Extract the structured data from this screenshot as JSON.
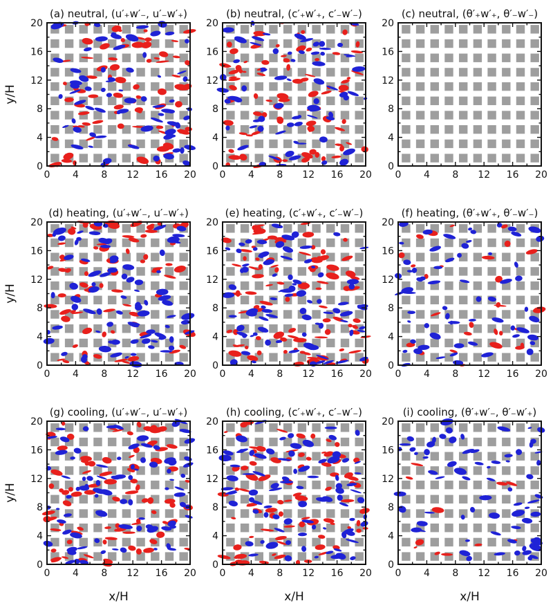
{
  "figure": {
    "xlabel": "x/H",
    "ylabel": "y/H"
  },
  "colors": {
    "block": "#9e9e9e",
    "positive_event": "#e8201c",
    "negative_event": "#1f22d6",
    "frame": "#111111"
  },
  "chart_data": [
    {
      "type": "heatmap",
      "id": "a",
      "title": "(a) neutral, (u′₊w′₋, u′₋w′₊)",
      "xlabel": "",
      "ylabel": "y/H",
      "xlim": [
        0,
        20
      ],
      "ylim": [
        0,
        20
      ],
      "xticks": [
        0,
        4,
        8,
        12,
        16,
        20
      ],
      "yticks": [
        0,
        4,
        8,
        12,
        16,
        20
      ],
      "red_density": 0.55,
      "blue_density": 0.5,
      "seed": 11
    },
    {
      "type": "heatmap",
      "id": "b",
      "title": "(b) neutral, (c′₊w′₊, c′₋w′₋)",
      "xlabel": "",
      "ylabel": "",
      "xlim": [
        0,
        20
      ],
      "ylim": [
        0,
        20
      ],
      "xticks": [
        0,
        4,
        8,
        12,
        16,
        20
      ],
      "yticks": [
        0,
        4,
        8,
        12,
        16,
        20
      ],
      "red_density": 0.6,
      "blue_density": 0.5,
      "seed": 23
    },
    {
      "type": "heatmap",
      "id": "c",
      "title": "(c) neutral, (θ′₊w′₊, θ′₋w′₋)",
      "xlabel": "",
      "ylabel": "",
      "xlim": [
        0,
        20
      ],
      "ylim": [
        0,
        20
      ],
      "xticks": [
        0,
        4,
        8,
        12,
        16,
        20
      ],
      "yticks": [
        0,
        4,
        8,
        12,
        16,
        20
      ],
      "red_density": 0,
      "blue_density": 0,
      "seed": 31
    },
    {
      "type": "heatmap",
      "id": "d",
      "title": "(d) heating, (u′₊w′₋, u′₋w′₊)",
      "xlabel": "",
      "ylabel": "y/H",
      "xlim": [
        0,
        20
      ],
      "ylim": [
        0,
        20
      ],
      "xticks": [
        0,
        4,
        8,
        12,
        16,
        20
      ],
      "yticks": [
        0,
        4,
        8,
        12,
        16,
        20
      ],
      "red_density": 0.55,
      "blue_density": 0.6,
      "seed": 41
    },
    {
      "type": "heatmap",
      "id": "e",
      "title": "(e) heating, (c′₊w′₊, c′₋w′₋)",
      "xlabel": "",
      "ylabel": "",
      "xlim": [
        0,
        20
      ],
      "ylim": [
        0,
        20
      ],
      "xticks": [
        0,
        4,
        8,
        12,
        16,
        20
      ],
      "yticks": [
        0,
        4,
        8,
        12,
        16,
        20
      ],
      "red_density": 0.65,
      "blue_density": 0.6,
      "seed": 53
    },
    {
      "type": "heatmap",
      "id": "f",
      "title": "(f) heating, (θ′₊w′₊, θ′₋w′₋)",
      "xlabel": "",
      "ylabel": "",
      "xlim": [
        0,
        20
      ],
      "ylim": [
        0,
        20
      ],
      "xticks": [
        0,
        4,
        8,
        12,
        16,
        20
      ],
      "yticks": [
        0,
        4,
        8,
        12,
        16,
        20
      ],
      "red_density": 0.2,
      "blue_density": 0.45,
      "seed": 67
    },
    {
      "type": "heatmap",
      "id": "g",
      "title": "(g) cooling, (u′₊w′₋, u′₋w′₊)",
      "xlabel": "x/H",
      "ylabel": "y/H",
      "xlim": [
        0,
        20
      ],
      "ylim": [
        0,
        20
      ],
      "xticks": [
        0,
        4,
        8,
        12,
        16,
        20
      ],
      "yticks": [
        0,
        4,
        8,
        12,
        16,
        20
      ],
      "red_density": 0.6,
      "blue_density": 0.6,
      "seed": 71
    },
    {
      "type": "heatmap",
      "id": "h",
      "title": "(h) cooling, (c′₊w′₊, c′₋w′₋)",
      "xlabel": "x/H",
      "ylabel": "",
      "xlim": [
        0,
        20
      ],
      "ylim": [
        0,
        20
      ],
      "xticks": [
        0,
        4,
        8,
        12,
        16,
        20
      ],
      "yticks": [
        0,
        4,
        8,
        12,
        16,
        20
      ],
      "red_density": 0.6,
      "blue_density": 0.6,
      "seed": 83
    },
    {
      "type": "heatmap",
      "id": "i",
      "title": "(i) cooling, (θ′₊w′₋, θ′₋w′₊)",
      "xlabel": "x/H",
      "ylabel": "",
      "xlim": [
        0,
        20
      ],
      "ylim": [
        0,
        20
      ],
      "xticks": [
        0,
        4,
        8,
        12,
        16,
        20
      ],
      "yticks": [
        0,
        4,
        8,
        12,
        16,
        20
      ],
      "red_density": 0.08,
      "blue_density": 0.5,
      "seed": 97
    }
  ]
}
